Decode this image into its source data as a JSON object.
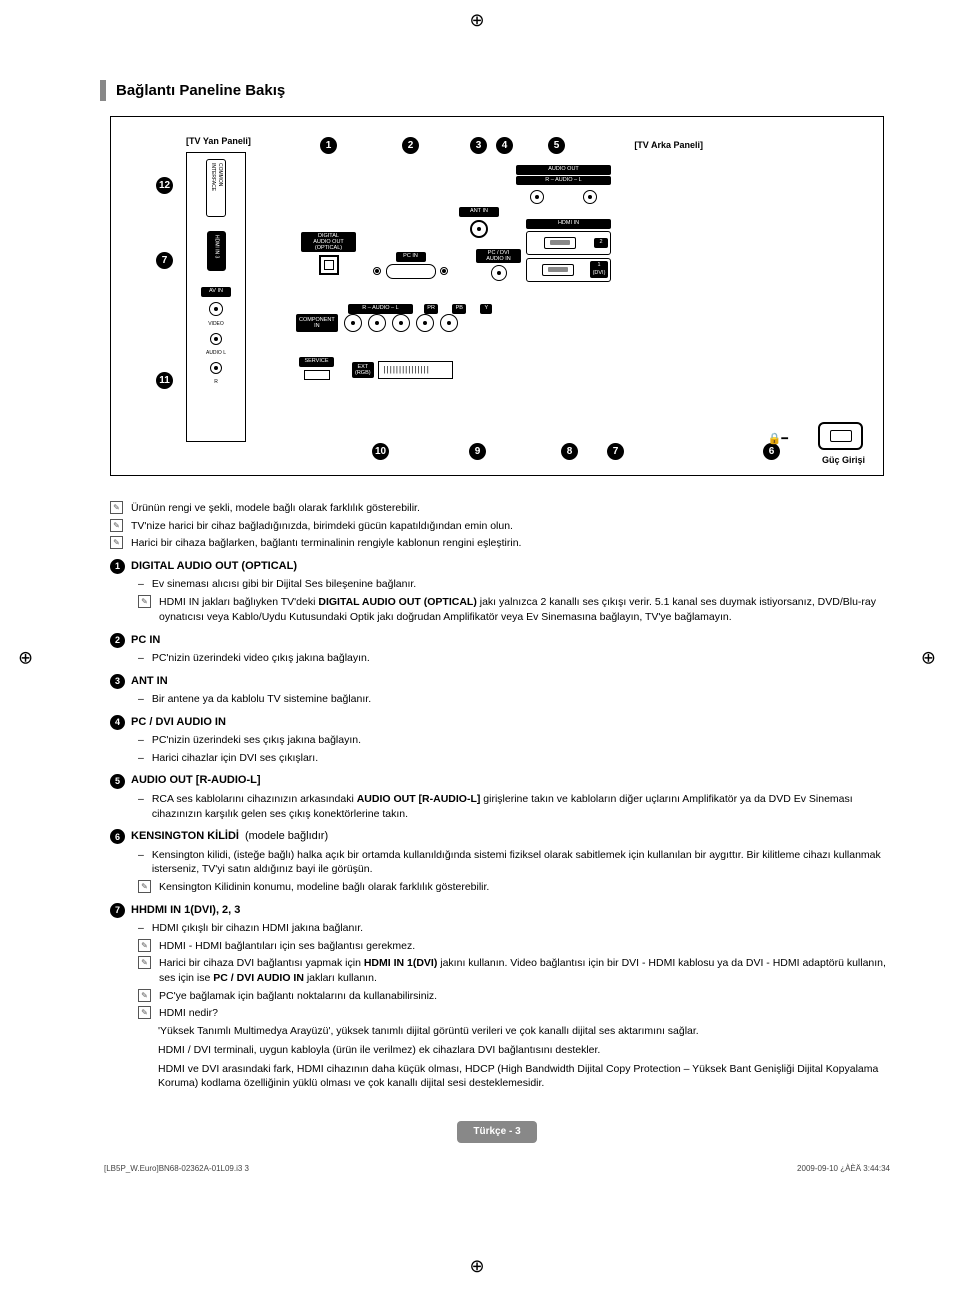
{
  "section_title": "Bağlantı Paneline Bakış",
  "diagram": {
    "side_panel_label": "[TV Yan Paneli]",
    "rear_panel_label": "[TV Arka Paneli]",
    "power_label": "Güç Girişi",
    "side_ports": {
      "common_interface": "COMMON INTERFACE",
      "hdmi3": "HDMI IN 3",
      "avin": "AV IN",
      "video": "VIDEO",
      "audio_l": "AUDIO L",
      "audio_r": "R"
    },
    "rear_ports": {
      "digital_audio": "DIGITAL\nAUDIO OUT\n(OPTICAL)",
      "pc_in": "PC IN",
      "ant_in": "ANT IN",
      "pc_dvi_audio": "PC / DVI\nAUDIO IN",
      "audio_out": "AUDIO OUT",
      "audio_rl": "R – AUDIO – L",
      "hdmi_in": "HDMI IN",
      "hdmi2": "2",
      "hdmi1": "1\n(DVI)",
      "component": "COMPONENT\nIN",
      "comp_audio": "R – AUDIO – L",
      "comp_pr": "PR",
      "comp_pb": "PB",
      "comp_y": "Y",
      "service": "SERVICE",
      "ext_rgb": "EXT\n(RGB)"
    },
    "callouts": [
      "1",
      "2",
      "3",
      "4",
      "5",
      "6",
      "7",
      "8",
      "9",
      "10",
      "11",
      "12"
    ]
  },
  "top_notes": [
    "Ürünün rengi ve şekli, modele bağlı olarak farklılık gösterebilir.",
    "TV'nize harici bir cihaz bağladığınızda, birimdeki gücün kapatıldığından emin olun.",
    "Harici bir cihaza bağlarken, bağlantı terminalinin rengiyle kablonun rengini eşleştirin."
  ],
  "items": [
    {
      "num": "1",
      "title": "DIGITAL AUDIO OUT (OPTICAL)",
      "lines": [
        {
          "type": "dash",
          "text": "Ev sineması alıcısı gibi bir Dijital Ses bileşenine bağlanır."
        },
        {
          "type": "note",
          "prefix": "HDMI IN jakları bağlıyken TV'deki ",
          "bold": "DIGITAL AUDIO OUT (OPTICAL)",
          "suffix": " jakı yalnızca 2 kanallı ses çıkışı verir. 5.1 kanal ses duymak istiyorsanız, DVD/Blu-ray oynatıcısı veya Kablo/Uydu Kutusundaki Optik jakı doğrudan Amplifikatör veya Ev Sinemasına bağlayın, TV'ye bağlamayın."
        }
      ]
    },
    {
      "num": "2",
      "title": "PC IN",
      "lines": [
        {
          "type": "dash",
          "text": "PC'nizin üzerindeki video çıkış jakına bağlayın."
        }
      ]
    },
    {
      "num": "3",
      "title": "ANT IN",
      "lines": [
        {
          "type": "dash",
          "text": "Bir antene ya da kablolu TV sistemine bağlanır."
        }
      ]
    },
    {
      "num": "4",
      "title": "PC / DVI AUDIO IN",
      "lines": [
        {
          "type": "dash",
          "text": "PC'nizin üzerindeki ses çıkış jakına bağlayın."
        },
        {
          "type": "dash",
          "text": "Harici cihazlar için DVI ses çıkışları."
        }
      ]
    },
    {
      "num": "5",
      "title": "AUDIO OUT [R-AUDIO-L]",
      "lines": [
        {
          "type": "dash",
          "prefix": "RCA ses kablolarını cihazınızın arkasındaki ",
          "bold": "AUDIO OUT [R-AUDIO-L]",
          "suffix": " girişlerine takın ve kabloların diğer uçlarını Amplifikatör ya da DVD Ev Sineması cihazınızın karşılık gelen ses çıkış konektörlerine takın."
        }
      ]
    },
    {
      "num": "6",
      "title": "KENSINGTON KİLİDİ",
      "title_aux": " (modele bağlıdır)",
      "lines": [
        {
          "type": "dash",
          "text": "Kensington kilidi, (isteğe bağlı) halka açık bir ortamda kullanıldığında sistemi fiziksel olarak sabitlemek için kullanılan bir aygıttır. Bir kilitleme cihazı kullanmak isterseniz, TV'yi satın aldığınız bayi ile görüşün."
        },
        {
          "type": "note",
          "text": "Kensington Kilidinin konumu, modeline bağlı olarak farklılık gösterebilir."
        }
      ]
    },
    {
      "num": "7",
      "title": "HHDMI IN 1(DVI), 2, 3",
      "lines": [
        {
          "type": "dash",
          "text": "HDMI çıkışlı bir cihazın HDMI jakına bağlanır."
        },
        {
          "type": "note",
          "text": "HDMI - HDMI bağlantıları için ses bağlantısı gerekmez."
        },
        {
          "type": "note",
          "prefix": "Harici bir cihaza DVI bağlantısı yapmak için ",
          "bold": "HDMI IN 1(DVI)",
          "mid": " jakını kullanın. Video bağlantısı için bir DVI - HDMI kablosu ya da DVI - HDMI adaptörü kullanın, ses için ise ",
          "bold2": "PC / DVI AUDIO IN",
          "suffix": " jakları kullanın."
        },
        {
          "type": "note",
          "text": "PC'ye bağlamak için bağlantı noktalarını da kullanabilirsiniz."
        },
        {
          "type": "note",
          "text": "HDMI nedir?"
        }
      ],
      "paras": [
        "'Yüksek Tanımlı Multimedya Arayüzü', yüksek tanımlı dijital görüntü verileri ve çok kanallı dijital ses aktarımını sağlar.",
        "HDMI / DVI terminali, uygun kabloyla (ürün ile verilmez) ek cihazlara DVI bağlantısını destekler.",
        "HDMI ve DVI arasındaki fark, HDMI cihazının daha küçük olması, HDCP (High Bandwidth Dijital Copy Protection – Yüksek Bant Genişliği Dijital Kopyalama Koruma) kodlama özelliğinin yüklü olması ve çok kanallı dijital sesi desteklemesidir."
      ]
    }
  ],
  "page_indicator": {
    "lang": "Türkçe",
    "sep": " - ",
    "num": "3"
  },
  "footer": {
    "left": "[LB5P_W.Euro]BN68-02362A-01L09.i3   3",
    "right": "2009-09-10   ¿ÀÈÄ 3:44:34"
  }
}
